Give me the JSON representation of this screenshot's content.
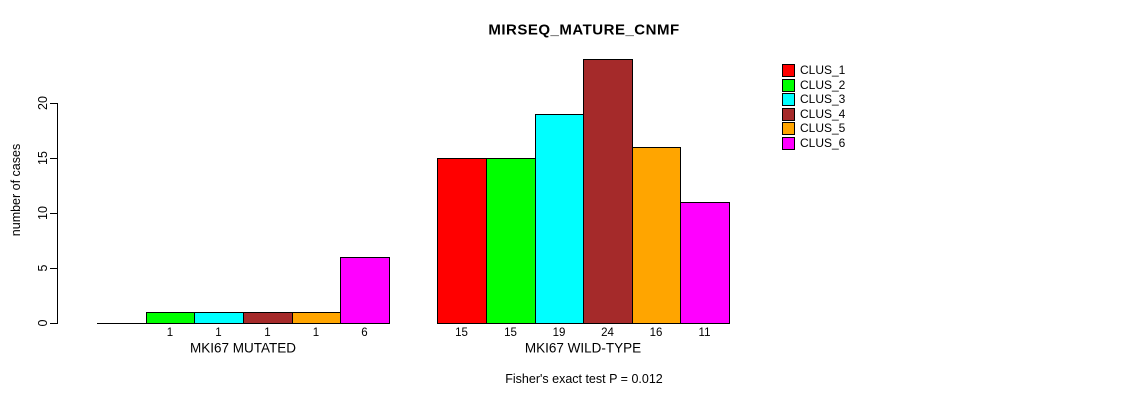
{
  "title": "MIRSEQ_MATURE_CNMF",
  "y_axis_label": "number of cases",
  "annotation": "Fisher's exact test P = 0.012",
  "legend": {
    "items": [
      {
        "label": "CLUS_1",
        "color": "#FF0000"
      },
      {
        "label": "CLUS_2",
        "color": "#00FF00"
      },
      {
        "label": "CLUS_3",
        "color": "#00FFFF"
      },
      {
        "label": "CLUS_4",
        "color": "#A52A2A"
      },
      {
        "label": "CLUS_5",
        "color": "#FFA500"
      },
      {
        "label": "CLUS_6",
        "color": "#FF00FF"
      }
    ],
    "position": "top-right"
  },
  "chart_data": {
    "type": "bar",
    "title": "MIRSEQ_MATURE_CNMF",
    "xlabel": "",
    "ylabel": "number of cases",
    "annotation": "Fisher's exact test P = 0.012",
    "ylim": [
      0,
      24
    ],
    "yticks": [
      0,
      5,
      10,
      15,
      20
    ],
    "grid": false,
    "legend_position": "top-right",
    "categories": [
      "MKI67 MUTATED",
      "MKI67 WILD-TYPE"
    ],
    "series": [
      {
        "name": "CLUS_1",
        "color": "#FF0000",
        "values": [
          0,
          15
        ]
      },
      {
        "name": "CLUS_2",
        "color": "#00FF00",
        "values": [
          1,
          15
        ]
      },
      {
        "name": "CLUS_3",
        "color": "#00FFFF",
        "values": [
          1,
          19
        ]
      },
      {
        "name": "CLUS_4",
        "color": "#A52A2A",
        "values": [
          1,
          24
        ]
      },
      {
        "name": "CLUS_5",
        "color": "#FFA500",
        "values": [
          1,
          16
        ]
      },
      {
        "name": "CLUS_6",
        "color": "#FF00FF",
        "values": [
          6,
          11
        ]
      }
    ],
    "bar_labels": [
      [
        "",
        "1",
        "1",
        "1",
        "1",
        "6"
      ],
      [
        "15",
        "15",
        "19",
        "24",
        "16",
        "11"
      ]
    ]
  }
}
